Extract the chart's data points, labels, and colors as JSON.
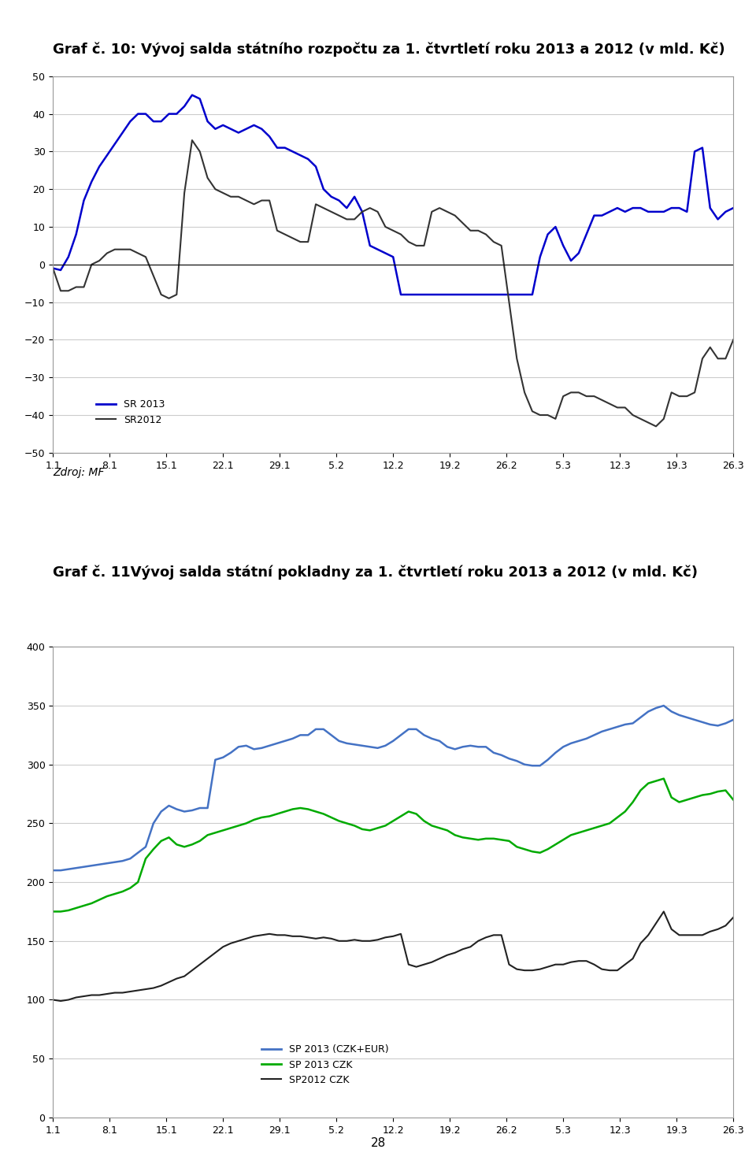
{
  "title1": "Graf č. 10: Vývoj salda státního rozpočtu za 1. čtvrtletí roku 2013 a 2012 (v mld. Kč)",
  "title2": "Graf č. 11Vývoj salda státní pokladny za 1. čtvrtletí roku 2013 a 2012 (v mld. Kč)",
  "source_text": "Zdroj: MF",
  "page_number": "28",
  "xtick_labels": [
    "1.1",
    "8.1",
    "15.1",
    "22.1",
    "29.1",
    "5.2",
    "12.2",
    "19.2",
    "26.2",
    "5.3",
    "12.3",
    "19.3",
    "26.3"
  ],
  "chart1_ylim": [
    -50,
    50
  ],
  "chart1_yticks": [
    -50,
    -40,
    -30,
    -20,
    -10,
    0,
    10,
    20,
    30,
    40,
    50
  ],
  "chart1_legend": [
    "SR 2013",
    "SR2012"
  ],
  "chart1_color_sr2013": "#0000cc",
  "chart1_color_sr2012": "#333333",
  "sr2013_y": [
    -1,
    -1.5,
    2,
    8,
    17,
    22,
    26,
    29,
    32,
    35,
    38,
    40,
    40,
    38,
    38,
    40,
    40,
    42,
    45,
    44,
    38,
    36,
    37,
    36,
    35,
    36,
    37,
    36,
    34,
    31,
    31,
    30,
    29,
    28,
    26,
    20,
    18,
    17,
    15,
    18,
    14,
    5,
    4,
    3,
    2,
    -8,
    -8,
    -8,
    -8,
    -8,
    -8,
    -8,
    -8,
    -8,
    -8,
    -8,
    -8,
    -8,
    -8,
    -8,
    -8,
    -8,
    -8,
    2,
    8,
    10,
    5,
    1,
    3,
    8,
    13,
    13,
    14,
    15,
    14,
    15,
    15,
    14,
    14,
    14,
    15,
    15,
    14,
    30,
    31,
    15,
    12,
    14,
    15
  ],
  "sr2012_y": [
    -1,
    -7,
    -7,
    -6,
    -6,
    0,
    1,
    3,
    4,
    4,
    4,
    3,
    2,
    -3,
    -8,
    -9,
    -8,
    19,
    33,
    30,
    23,
    20,
    19,
    18,
    18,
    17,
    16,
    17,
    17,
    9,
    8,
    7,
    6,
    6,
    16,
    15,
    14,
    13,
    12,
    12,
    14,
    15,
    14,
    10,
    9,
    8,
    6,
    5,
    5,
    14,
    15,
    14,
    13,
    11,
    9,
    9,
    8,
    6,
    5,
    -10,
    -25,
    -34,
    -39,
    -40,
    -40,
    -41,
    -35,
    -34,
    -34,
    -35,
    -35,
    -36,
    -37,
    -38,
    -38,
    -40,
    -41,
    -42,
    -43,
    -41,
    -34,
    -35,
    -35,
    -34,
    -25,
    -22,
    -25,
    -25,
    -20
  ],
  "chart2_ylim": [
    0,
    400
  ],
  "chart2_yticks": [
    0,
    50,
    100,
    150,
    200,
    250,
    300,
    350,
    400
  ],
  "chart2_legend": [
    "SP 2013 (CZK+EUR)",
    "SP 2013 CZK",
    "SP2012 CZK"
  ],
  "chart2_color_sp2013_czk_eur": "#4472c4",
  "chart2_color_sp2013_czk": "#00aa00",
  "chart2_color_sp2012_czk": "#222222",
  "sp2013_czk_eur_y": [
    210,
    210,
    211,
    212,
    213,
    214,
    215,
    216,
    217,
    218,
    220,
    225,
    230,
    250,
    260,
    265,
    262,
    260,
    261,
    263,
    263,
    304,
    306,
    310,
    315,
    316,
    313,
    314,
    316,
    318,
    320,
    322,
    325,
    325,
    330,
    330,
    325,
    320,
    318,
    317,
    316,
    315,
    314,
    316,
    320,
    325,
    330,
    330,
    325,
    322,
    320,
    315,
    313,
    315,
    316,
    315,
    315,
    310,
    308,
    305,
    303,
    300,
    299,
    299,
    304,
    310,
    315,
    318,
    320,
    322,
    325,
    328,
    330,
    332,
    334,
    335,
    340,
    345,
    348,
    350,
    345,
    342,
    340,
    338,
    336,
    334,
    333,
    335,
    338
  ],
  "sp2013_czk_y": [
    175,
    175,
    176,
    178,
    180,
    182,
    185,
    188,
    190,
    192,
    195,
    200,
    220,
    228,
    235,
    238,
    232,
    230,
    232,
    235,
    240,
    242,
    244,
    246,
    248,
    250,
    253,
    255,
    256,
    258,
    260,
    262,
    263,
    262,
    260,
    258,
    255,
    252,
    250,
    248,
    245,
    244,
    246,
    248,
    252,
    256,
    260,
    258,
    252,
    248,
    246,
    244,
    240,
    238,
    237,
    236,
    237,
    237,
    236,
    235,
    230,
    228,
    226,
    225,
    228,
    232,
    236,
    240,
    242,
    244,
    246,
    248,
    250,
    255,
    260,
    268,
    278,
    284,
    286,
    288,
    272,
    268,
    270,
    272,
    274,
    275,
    277,
    278,
    270
  ],
  "sp2012_czk_y": [
    100,
    99,
    100,
    102,
    103,
    104,
    104,
    105,
    106,
    106,
    107,
    108,
    109,
    110,
    112,
    115,
    118,
    120,
    125,
    130,
    135,
    140,
    145,
    148,
    150,
    152,
    154,
    155,
    156,
    155,
    155,
    154,
    154,
    153,
    152,
    153,
    152,
    150,
    150,
    151,
    150,
    150,
    151,
    153,
    154,
    156,
    130,
    128,
    130,
    132,
    135,
    138,
    140,
    143,
    145,
    150,
    153,
    155,
    155,
    130,
    126,
    125,
    125,
    126,
    128,
    130,
    130,
    132,
    133,
    133,
    130,
    126,
    125,
    125,
    130,
    135,
    148,
    155,
    165,
    175,
    160,
    155,
    155,
    155,
    155,
    158,
    160,
    163,
    170
  ]
}
